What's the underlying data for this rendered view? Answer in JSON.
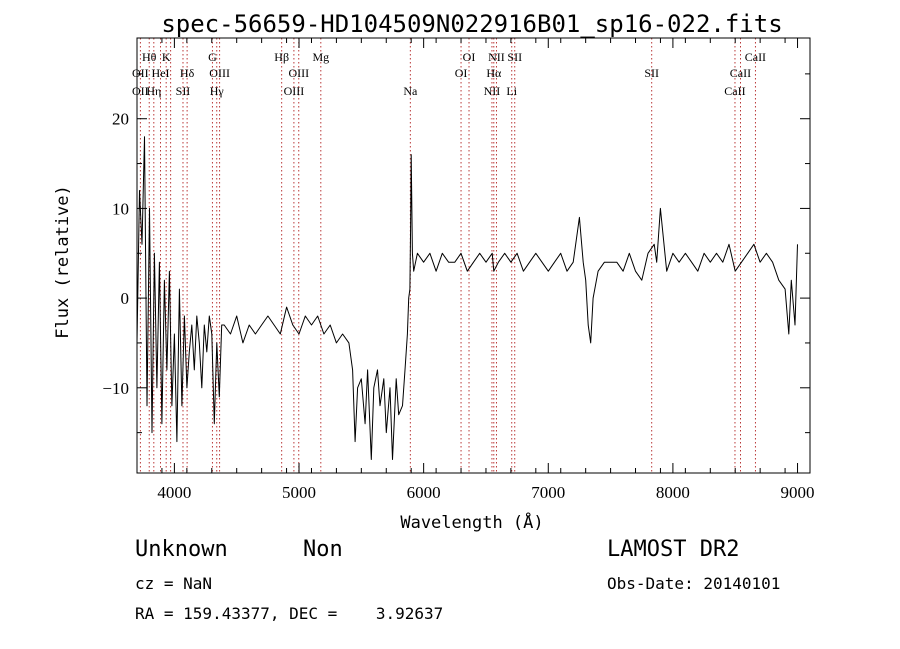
{
  "chart_data": {
    "type": "line",
    "title": "spec-56659-HD104509N022916B01_sp16-022.fits",
    "xlabel": "Wavelength (Å)",
    "ylabel": "Flux (relative)",
    "xlim": [
      3700,
      9100
    ],
    "ylim": [
      -19.5,
      29
    ],
    "xticks": [
      4000,
      5000,
      6000,
      7000,
      8000,
      9000
    ],
    "yticks": [
      -10,
      0,
      10,
      20
    ],
    "series": [
      {
        "color": "#000000",
        "x": [
          3700,
          3720,
          3740,
          3760,
          3780,
          3800,
          3820,
          3840,
          3860,
          3880,
          3900,
          3920,
          3940,
          3960,
          3980,
          4000,
          4020,
          4040,
          4060,
          4080,
          4100,
          4120,
          4140,
          4160,
          4180,
          4200,
          4220,
          4240,
          4260,
          4280,
          4300,
          4320,
          4340,
          4360,
          4380,
          4400,
          4450,
          4500,
          4550,
          4600,
          4650,
          4700,
          4750,
          4800,
          4850,
          4900,
          4950,
          5000,
          5050,
          5100,
          5150,
          5200,
          5250,
          5300,
          5350,
          5400,
          5430,
          5450,
          5470,
          5500,
          5530,
          5550,
          5580,
          5600,
          5630,
          5650,
          5680,
          5700,
          5730,
          5750,
          5780,
          5800,
          5830,
          5850,
          5870,
          5880,
          5890,
          5895,
          5900,
          5910,
          5920,
          5950,
          6000,
          6050,
          6100,
          6150,
          6200,
          6250,
          6300,
          6350,
          6400,
          6450,
          6500,
          6550,
          6563,
          6600,
          6650,
          6700,
          6750,
          6800,
          6850,
          6900,
          6950,
          7000,
          7050,
          7100,
          7150,
          7200,
          7250,
          7280,
          7300,
          7320,
          7340,
          7360,
          7400,
          7450,
          7500,
          7550,
          7600,
          7650,
          7700,
          7750,
          7800,
          7850,
          7870,
          7900,
          7950,
          8000,
          8050,
          8100,
          8150,
          8200,
          8250,
          8300,
          8350,
          8400,
          8450,
          8500,
          8550,
          8600,
          8650,
          8700,
          8750,
          8800,
          8850,
          8900,
          8930,
          8950,
          8980,
          9000
        ],
        "y": [
          -5,
          12,
          6,
          18,
          -12,
          10,
          -15,
          5,
          -10,
          4,
          -14,
          2,
          -8,
          3,
          -12,
          -4,
          -16,
          1,
          -12,
          -2,
          -10,
          -6,
          -3,
          -8,
          -2,
          -5,
          -10,
          -3,
          -6,
          -2,
          -4,
          -14,
          -5,
          -11,
          -3,
          -3,
          -4,
          -2,
          -5,
          -3,
          -4,
          -3,
          -2,
          -3,
          -4,
          -1,
          -3,
          -4,
          -2,
          -3,
          -2,
          -4,
          -3,
          -5,
          -4,
          -5,
          -8,
          -16,
          -10,
          -9,
          -14,
          -8,
          -18,
          -10,
          -8,
          -12,
          -9,
          -15,
          -10,
          -18,
          -9,
          -13,
          -12,
          -8,
          -4,
          0,
          1,
          8,
          16,
          5,
          3,
          5,
          4,
          5,
          3,
          5,
          4,
          4,
          5,
          3,
          4,
          5,
          4,
          5,
          3,
          4,
          5,
          4,
          5,
          3,
          4,
          5,
          4,
          3,
          4,
          5,
          3,
          4,
          9,
          4,
          2,
          -3,
          -5,
          0,
          3,
          4,
          4,
          4,
          3,
          5,
          3,
          2,
          5,
          6,
          4,
          10,
          3,
          5,
          4,
          5,
          4,
          3,
          5,
          4,
          5,
          4,
          6,
          3,
          4,
          5,
          6,
          4,
          5,
          4,
          2,
          1,
          -4,
          2,
          -3,
          6
        ]
      }
    ],
    "line_labels": [
      {
        "text": "OII",
        "x": 3727,
        "row": 2
      },
      {
        "text": "OII",
        "x": 3727,
        "row": 3
      },
      {
        "text": "Hθ",
        "x": 3798,
        "row": 1
      },
      {
        "text": "Hη",
        "x": 3835,
        "row": 3
      },
      {
        "text": "HeI",
        "x": 3889,
        "row": 2
      },
      {
        "text": "K",
        "x": 3934,
        "row": 1
      },
      {
        "text": "Hδ",
        "x": 4102,
        "row": 2
      },
      {
        "text": "SII",
        "x": 4069,
        "row": 3
      },
      {
        "text": "G",
        "x": 4305,
        "row": 1
      },
      {
        "text": "OIII",
        "x": 4363,
        "row": 2
      },
      {
        "text": "Hγ",
        "x": 4340,
        "row": 3
      },
      {
        "text": "Hβ",
        "x": 4861,
        "row": 1
      },
      {
        "text": "OIII",
        "x": 4998,
        "row": 2
      },
      {
        "text": "OIII",
        "x": 4959,
        "row": 3
      },
      {
        "text": "Mg",
        "x": 5175,
        "row": 1
      },
      {
        "text": "Na",
        "x": 5893,
        "row": 3
      },
      {
        "text": "OI",
        "x": 6364,
        "row": 1
      },
      {
        "text": "OI",
        "x": 6300,
        "row": 2
      },
      {
        "text": "NII",
        "x": 6584,
        "row": 1
      },
      {
        "text": "Hα",
        "x": 6563,
        "row": 2
      },
      {
        "text": "NII",
        "x": 6548,
        "row": 3
      },
      {
        "text": "SII",
        "x": 6731,
        "row": 1
      },
      {
        "text": "Li",
        "x": 6707,
        "row": 3
      },
      {
        "text": "SII",
        "x": 7830,
        "row": 2
      },
      {
        "text": "CaII",
        "x": 8662,
        "row": 1
      },
      {
        "text": "CaII",
        "x": 8542,
        "row": 2
      },
      {
        "text": "CaII",
        "x": 8498,
        "row": 3
      }
    ],
    "marker_lines": [
      3727,
      3798,
      3835,
      3889,
      3934,
      3970,
      4069,
      4102,
      4305,
      4340,
      4363,
      4861,
      4959,
      4998,
      5175,
      5893,
      6300,
      6364,
      6548,
      6563,
      6584,
      6707,
      6731,
      7830,
      8498,
      8542,
      8662
    ]
  },
  "info": {
    "object_type": "Unknown",
    "subclass": "Non",
    "survey": "LAMOST DR2",
    "cz": "cz = NaN",
    "obs_date": "Obs-Date: 20140101",
    "coords": "RA = 159.43377, DEC =    3.92637"
  },
  "colors": {
    "marker_line": "#b22222",
    "spectrum": "#000000"
  }
}
